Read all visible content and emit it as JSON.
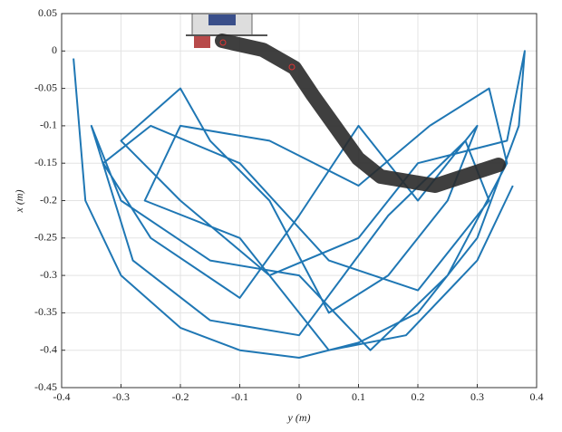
{
  "chart_data": {
    "type": "line",
    "xlabel": "y (m)",
    "ylabel": "x (m)",
    "xlim": [
      -0.4,
      0.4
    ],
    "xticks": [
      -0.4,
      -0.3,
      -0.2,
      -0.1,
      0,
      0.1,
      0.2,
      0.3,
      0.4
    ],
    "ylim": [
      -0.45,
      0.05
    ],
    "yticks": [
      -0.45,
      -0.4,
      -0.35,
      -0.3,
      -0.25,
      -0.2,
      -0.15,
      -0.1,
      -0.05,
      0,
      0.05
    ],
    "grid": true,
    "series": [
      {
        "color": "#1f77b4",
        "x": [
          -0.38,
          -0.36,
          -0.3,
          -0.2,
          -0.1,
          0,
          0.1,
          0.2,
          0.3,
          0.37,
          0.38,
          0.35,
          0.2,
          0.1,
          -0.05,
          -0.2,
          -0.3,
          -0.2,
          -0.15,
          -0.05,
          0.05,
          0.15,
          0.25,
          0.3,
          0.2,
          0.1,
          0,
          -0.1,
          -0.25,
          -0.33,
          -0.25,
          -0.1,
          0.05,
          0.2,
          0.32,
          0.28,
          0.15,
          0,
          -0.15,
          -0.28,
          -0.35,
          -0.3,
          -0.15,
          0,
          0.12,
          0.25,
          0.35,
          0.32,
          0.22,
          0.1,
          -0.05,
          -0.2,
          -0.26,
          -0.1,
          0.05,
          0.18,
          0.3,
          0.36
        ],
        "values": [
          -0.01,
          -0.2,
          -0.3,
          -0.37,
          -0.4,
          -0.41,
          -0.39,
          -0.35,
          -0.25,
          -0.1,
          0.0,
          -0.12,
          -0.15,
          -0.25,
          -0.3,
          -0.2,
          -0.12,
          -0.05,
          -0.12,
          -0.2,
          -0.35,
          -0.3,
          -0.2,
          -0.1,
          -0.2,
          -0.1,
          -0.22,
          -0.33,
          -0.25,
          -0.15,
          -0.1,
          -0.15,
          -0.28,
          -0.32,
          -0.2,
          -0.12,
          -0.22,
          -0.38,
          -0.36,
          -0.28,
          -0.1,
          -0.2,
          -0.28,
          -0.3,
          -0.4,
          -0.3,
          -0.15,
          -0.05,
          -0.1,
          -0.18,
          -0.12,
          -0.1,
          -0.2,
          -0.25,
          -0.4,
          -0.38,
          -0.28,
          -0.18
        ]
      }
    ]
  }
}
